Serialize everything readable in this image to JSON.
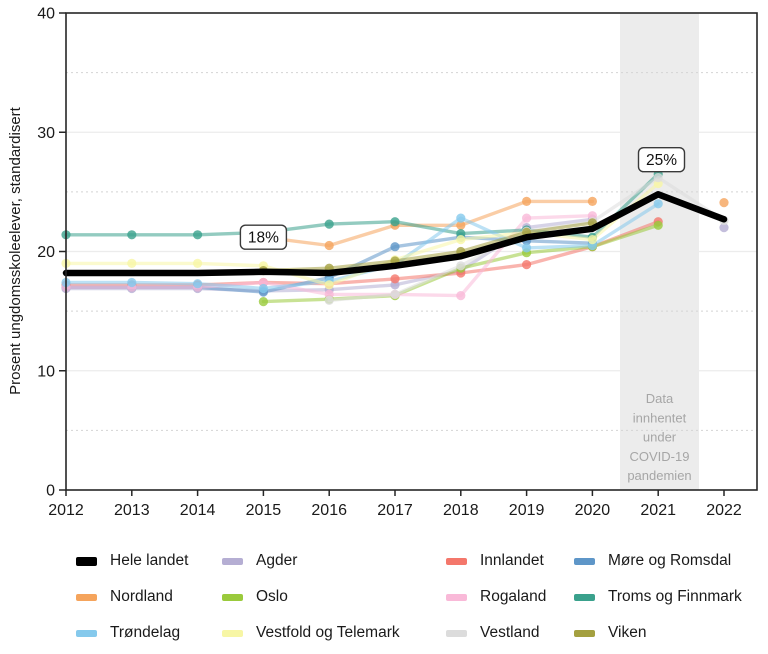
{
  "chart_data": {
    "type": "line",
    "title": "",
    "xlabel": "",
    "ylabel": "Prosent ungdomsskoleelever, standardisert",
    "x": [
      2012,
      2013,
      2014,
      2015,
      2016,
      2017,
      2018,
      2019,
      2020,
      2021,
      2022
    ],
    "ylim": [
      0,
      40
    ],
    "yticks": [
      0,
      10,
      20,
      30,
      40
    ],
    "major_gridlines": [
      10,
      20,
      30
    ],
    "minor_gridlines": [
      5,
      15,
      25,
      35
    ],
    "grid": true,
    "legend_position": "bottom",
    "series": [
      {
        "name": "Hele landet",
        "color": "#000000",
        "emphasis": true,
        "values": [
          18.2,
          18.2,
          18.2,
          18.3,
          18.2,
          18.8,
          19.6,
          21.2,
          21.9,
          24.8,
          22.7
        ]
      },
      {
        "name": "Agder",
        "color": "#b5aed3",
        "emphasis": false,
        "values": [
          16.9,
          16.9,
          16.9,
          16.7,
          16.8,
          17.2,
          18.4,
          22.0,
          22.7,
          null,
          22.0
        ]
      },
      {
        "name": "Innlandet",
        "color": "#f4776b",
        "emphasis": false,
        "values": [
          17.2,
          17.2,
          17.2,
          17.4,
          17.3,
          17.7,
          18.2,
          18.9,
          20.4,
          22.5,
          null
        ]
      },
      {
        "name": "Møre og Romsdal",
        "color": "#5e96c8",
        "emphasis": false,
        "values": [
          17.0,
          17.0,
          17.0,
          16.6,
          17.8,
          20.4,
          21.2,
          20.9,
          20.7,
          null,
          null
        ]
      },
      {
        "name": "Nordland",
        "color": "#f5a45c",
        "emphasis": false,
        "values": [
          null,
          null,
          null,
          21.2,
          20.5,
          22.2,
          22.2,
          24.2,
          24.2,
          null,
          24.1
        ]
      },
      {
        "name": "Oslo",
        "color": "#9aca3c",
        "emphasis": false,
        "values": [
          null,
          null,
          null,
          15.8,
          16.0,
          16.3,
          18.6,
          19.9,
          20.4,
          22.2,
          null
        ]
      },
      {
        "name": "Rogaland",
        "color": "#f9b9d8",
        "emphasis": false,
        "values": [
          17.0,
          17.0,
          17.0,
          17.4,
          16.4,
          16.4,
          16.3,
          22.8,
          23.0,
          null,
          null
        ]
      },
      {
        "name": "Troms og Finnmark",
        "color": "#3aa18c",
        "emphasis": false,
        "values": [
          21.4,
          21.4,
          21.4,
          21.6,
          22.3,
          22.5,
          21.5,
          21.8,
          21.2,
          26.5,
          null
        ]
      },
      {
        "name": "Trøndelag",
        "color": "#85c9ec",
        "emphasis": false,
        "values": [
          17.4,
          17.4,
          17.3,
          16.9,
          17.5,
          18.9,
          22.8,
          20.3,
          20.5,
          24.0,
          null
        ]
      },
      {
        "name": "Vestfold og Telemark",
        "color": "#f7f6a5",
        "emphasis": false,
        "values": [
          19.0,
          19.0,
          19.0,
          18.8,
          17.2,
          19.3,
          21.0,
          21.6,
          21.0,
          25.7,
          null
        ]
      },
      {
        "name": "Vestland",
        "color": "#dcdcdc",
        "emphasis": false,
        "values": [
          null,
          null,
          null,
          null,
          15.9,
          16.4,
          18.8,
          21.7,
          22.5,
          26.2,
          22.6
        ]
      },
      {
        "name": "Viken",
        "color": "#a4a040",
        "emphasis": false,
        "values": [
          null,
          null,
          null,
          18.4,
          18.6,
          19.2,
          20.0,
          21.6,
          22.4,
          null,
          null
        ]
      }
    ],
    "annotations": [
      {
        "label": "18%",
        "x": 2015.0,
        "y": 21.2
      },
      {
        "label": "25%",
        "x": 2021.05,
        "y": 27.7
      }
    ],
    "covid_band": {
      "x_start": 2020.42,
      "x_end": 2021.62,
      "color": "#ececec",
      "text_color": "#a6a6a6",
      "label_lines": [
        "Data",
        "innhentet",
        "under",
        "COVID-19",
        "pandemien"
      ]
    }
  }
}
